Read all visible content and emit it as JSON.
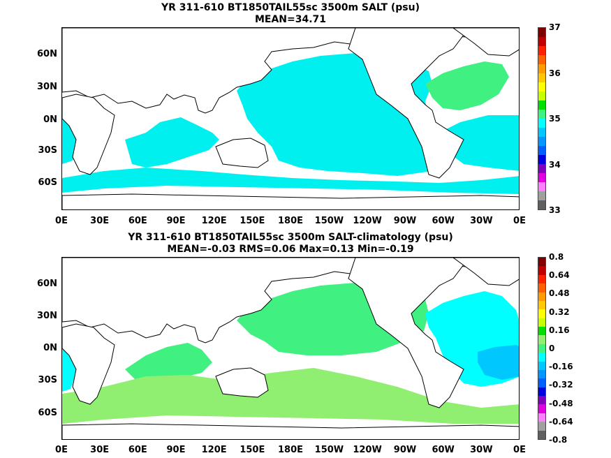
{
  "panel_top": {
    "title_line1": "YR 311-610 BT1850TAIL55sc 3500m SALT (psu)",
    "title_line2": "MEAN=34.71",
    "colorbar_ticks": [
      "37",
      "36",
      "35",
      "34",
      "33"
    ],
    "colorbar_colors": [
      "#800000",
      "#c00000",
      "#ff2000",
      "#ff6000",
      "#ff9a00",
      "#ffc800",
      "#ffff00",
      "#c8ff00",
      "#00e000",
      "#40f080",
      "#00ffff",
      "#00c8ff",
      "#0098ff",
      "#0060ff",
      "#0000e0",
      "#8000c0",
      "#e000e0",
      "#ff80ff",
      "#a0a0a0",
      "#606060"
    ]
  },
  "panel_bottom": {
    "title_line1": "YR 311-610 BT1850TAIL55sc 3500m SALT-climatology (psu)",
    "title_line2": "MEAN=-0.03   RMS=0.06   Max=0.13   Min=-0.19",
    "colorbar_ticks": [
      "0.8",
      "0.64",
      "0.48",
      "0.32",
      "0.16",
      "0",
      "-0.16",
      "-0.32",
      "-0.48",
      "-0.64",
      "-0.8"
    ],
    "colorbar_colors": [
      "#800000",
      "#c00000",
      "#ff2000",
      "#ff6000",
      "#ff9a00",
      "#ffc800",
      "#ffff00",
      "#c8ff00",
      "#00e000",
      "#90ee70",
      "#40f080",
      "#00ffff",
      "#00c8ff",
      "#0098ff",
      "#0060ff",
      "#0000e0",
      "#8000c0",
      "#e000e0",
      "#ff80ff",
      "#a0a0a0",
      "#606060"
    ]
  },
  "lat_labels": [
    "60N",
    "30N",
    "0N",
    "30S",
    "60S"
  ],
  "lon_labels": [
    "0E",
    "30E",
    "60E",
    "90E",
    "120E",
    "150E",
    "180E",
    "150W",
    "120W",
    "90W",
    "60W",
    "30W",
    "0E"
  ],
  "colors": {
    "salt_main": "#00f0f0",
    "salt_high": "#40f080",
    "diff_pos": "#40f080",
    "diff_southern": "#90ee70",
    "diff_neg_atlantic": "#00ffff",
    "diff_neg_deep": "#00c8ff",
    "land": "#ffffff",
    "coast": "#000000"
  }
}
